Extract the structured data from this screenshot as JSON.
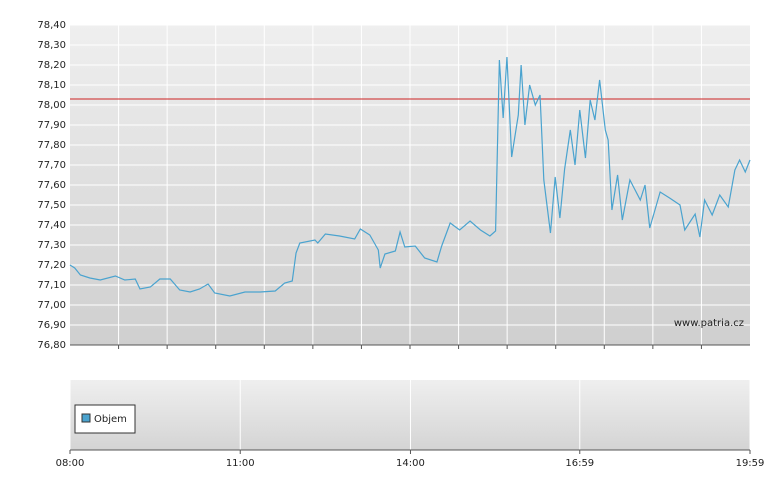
{
  "chart_data": {
    "type": "line",
    "x": [
      "08:00",
      "08:05",
      "08:11",
      "08:21",
      "08:32",
      "08:48",
      "08:58",
      "09:09",
      "09:14",
      "09:25",
      "09:35",
      "09:46",
      "09:56",
      "10:07",
      "10:17",
      "10:26",
      "10:33",
      "10:49",
      "11:05",
      "11:21",
      "11:37",
      "11:47",
      "11:55",
      "11:59",
      "12:03",
      "12:19",
      "12:22",
      "12:30",
      "12:45",
      "13:01",
      "13:07",
      "13:17",
      "13:26",
      "13:28",
      "13:33",
      "13:44",
      "13:49",
      "13:54",
      "14:05",
      "14:15",
      "14:28",
      "14:33",
      "14:42",
      "14:52",
      "15:03",
      "15:14",
      "15:24",
      "15:30",
      "15:34",
      "15:38",
      "15:42",
      "15:47",
      "15:54",
      "15:57",
      "16:01",
      "16:06",
      "16:12",
      "16:17",
      "16:21",
      "16:28",
      "16:33",
      "16:38",
      "16:43",
      "16:49",
      "16:54",
      "16:59",
      "17:05",
      "17:10",
      "17:15",
      "17:20",
      "17:26",
      "17:29",
      "17:33",
      "17:39",
      "17:44",
      "17:52",
      "18:03",
      "18:08",
      "18:13",
      "18:24",
      "18:34",
      "18:45",
      "18:50",
      "19:01",
      "19:06",
      "19:11",
      "19:19",
      "19:27",
      "19:36",
      "19:43",
      "19:48",
      "19:54",
      "19:59"
    ],
    "series": [
      {
        "color": "#4aa3cf",
        "values": [
          77.2,
          77.185,
          77.15,
          77.135,
          77.125,
          77.145,
          77.125,
          77.13,
          77.08,
          77.09,
          77.13,
          77.13,
          77.075,
          77.065,
          77.08,
          77.105,
          77.06,
          77.045,
          77.065,
          77.065,
          77.07,
          77.11,
          77.12,
          77.26,
          77.31,
          77.325,
          77.31,
          77.355,
          77.345,
          77.33,
          77.38,
          77.35,
          77.275,
          77.185,
          77.255,
          77.27,
          77.365,
          77.29,
          77.295,
          77.235,
          77.215,
          77.295,
          77.41,
          77.375,
          77.42,
          77.375,
          77.345,
          77.37,
          78.225,
          77.935,
          78.24,
          77.74,
          77.95,
          78.2,
          77.9,
          78.1,
          78.0,
          78.05,
          77.625,
          77.36,
          77.64,
          77.435,
          77.68,
          77.875,
          77.7,
          77.975,
          77.735,
          78.025,
          77.925,
          78.125,
          77.875,
          77.825,
          77.475,
          77.65,
          77.425,
          77.625,
          77.525,
          77.6,
          77.385,
          77.565,
          77.535,
          77.5,
          77.375,
          77.455,
          77.34,
          77.525,
          77.45,
          77.55,
          77.49,
          77.675,
          77.725,
          77.665,
          77.725
        ]
      }
    ],
    "reference_line": {
      "value": 78.03,
      "color": "#cc2222"
    },
    "xlim": [
      "08:00",
      "19:59"
    ],
    "xticks": [
      "08:00",
      "11:00",
      "14:00",
      "16:59",
      "19:59"
    ],
    "ylim": [
      76.8,
      78.4
    ],
    "yticks": [
      {
        "value": 76.8,
        "label": "76,80"
      },
      {
        "value": 76.9,
        "label": "76,90"
      },
      {
        "value": 77.0,
        "label": "77,00"
      },
      {
        "value": 77.1,
        "label": "77,10"
      },
      {
        "value": 77.2,
        "label": "77,20"
      },
      {
        "value": 77.3,
        "label": "77,30"
      },
      {
        "value": 77.4,
        "label": "77,40"
      },
      {
        "value": 77.5,
        "label": "77,50"
      },
      {
        "value": 77.6,
        "label": "77,60"
      },
      {
        "value": 77.7,
        "label": "77,70"
      },
      {
        "value": 77.8,
        "label": "77,80"
      },
      {
        "value": 77.9,
        "label": "77,90"
      },
      {
        "value": 78.0,
        "label": "78,00"
      },
      {
        "value": 78.1,
        "label": "78,10"
      },
      {
        "value": 78.2,
        "label": "78,20"
      },
      {
        "value": 78.3,
        "label": "78,30"
      },
      {
        "value": 78.4,
        "label": "78,40"
      }
    ],
    "grid": true,
    "watermark": "www.patria.cz",
    "volume_legend": {
      "label": "Objem",
      "color": "#4aa3cf"
    }
  }
}
